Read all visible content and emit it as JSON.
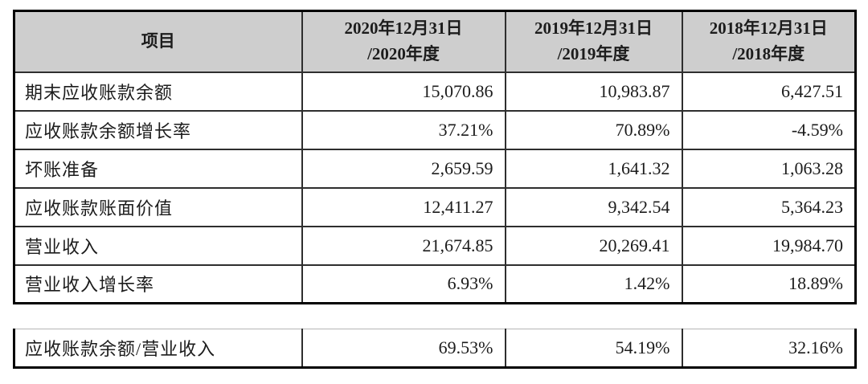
{
  "main_table": {
    "header": {
      "item": "项目",
      "col_2020": "2020年12月31日\n/2020年度",
      "col_2019": "2019年12月31日\n/2019年度",
      "col_2018": "2018年12月31日\n/2018年度"
    },
    "rows": [
      {
        "label": "期末应收账款余额",
        "v2020": "15,070.86",
        "v2019": "10,983.87",
        "v2018": "6,427.51"
      },
      {
        "label": "应收账款余额增长率",
        "v2020": "37.21%",
        "v2019": "70.89%",
        "v2018": "-4.59%"
      },
      {
        "label": "坏账准备",
        "v2020": "2,659.59",
        "v2019": "1,641.32",
        "v2018": "1,063.28"
      },
      {
        "label": "应收账款账面价值",
        "v2020": "12,411.27",
        "v2019": "9,342.54",
        "v2018": "5,364.23"
      },
      {
        "label": "营业收入",
        "v2020": "21,674.85",
        "v2019": "20,269.41",
        "v2018": "19,984.70"
      },
      {
        "label": "营业收入增长率",
        "v2020": "6.93%",
        "v2019": "1.42%",
        "v2018": "18.89%"
      }
    ]
  },
  "summary_table": {
    "row": {
      "label": "应收账款余额/营业收入",
      "v2020": "69.53%",
      "v2019": "54.19%",
      "v2018": "32.16%"
    }
  },
  "colors": {
    "header_bg": "#cecece",
    "outer_border": "#000000",
    "inner_border": "#2e2e2e",
    "text": "#1c1c1c"
  }
}
